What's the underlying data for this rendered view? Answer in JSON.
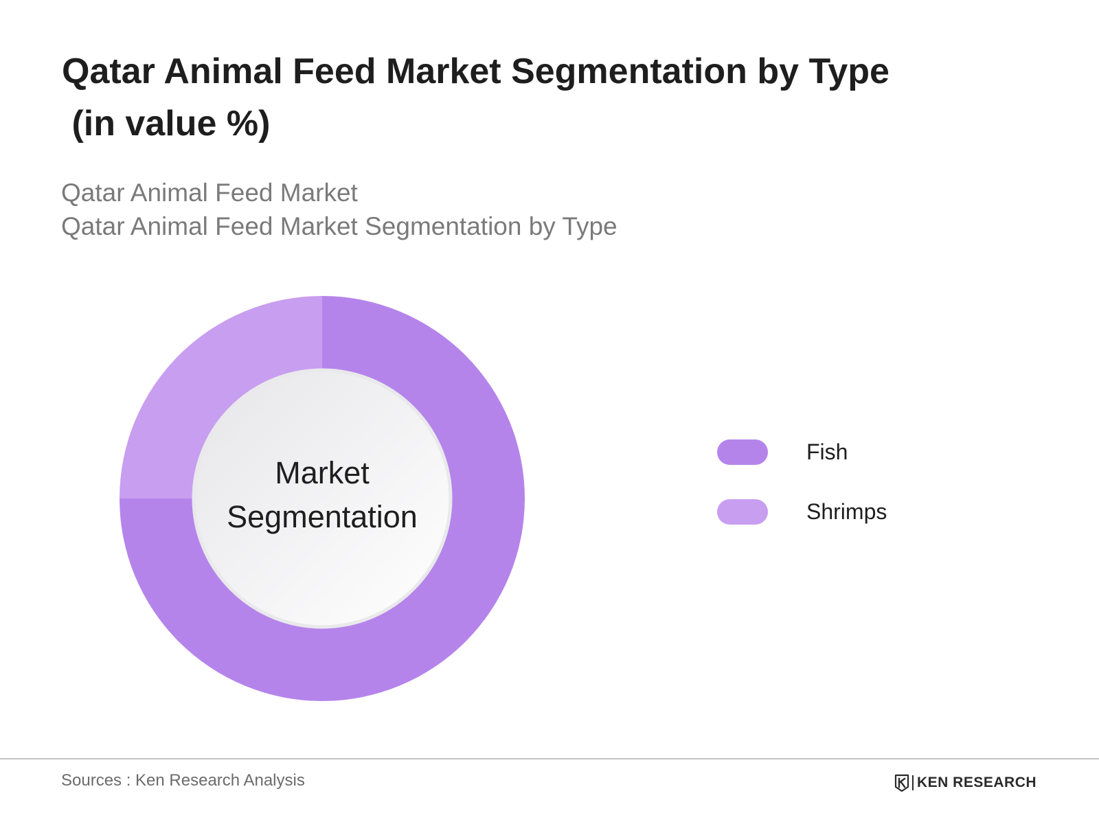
{
  "title_lines": [
    "Qatar Animal Feed Market Segmentation by Type",
    " (in value %)"
  ],
  "subtitle_lines": [
    "Qatar Animal Feed Market",
    "Qatar Animal Feed Market Segmentation by Type"
  ],
  "chart_data": {
    "type": "pie",
    "donut": true,
    "center_label_lines": [
      "Market",
      "Segmentation"
    ],
    "categories": [
      "Fish",
      "Shrimps"
    ],
    "values": [
      75,
      25
    ],
    "colors": [
      "#b584eb",
      "#c89ef0"
    ],
    "legend_position": "right"
  },
  "footer": {
    "source": "Sources : Ken Research Analysis",
    "brand": "KEN RESEARCH",
    "brand_logo_icon": "ken-research-logo-icon"
  }
}
